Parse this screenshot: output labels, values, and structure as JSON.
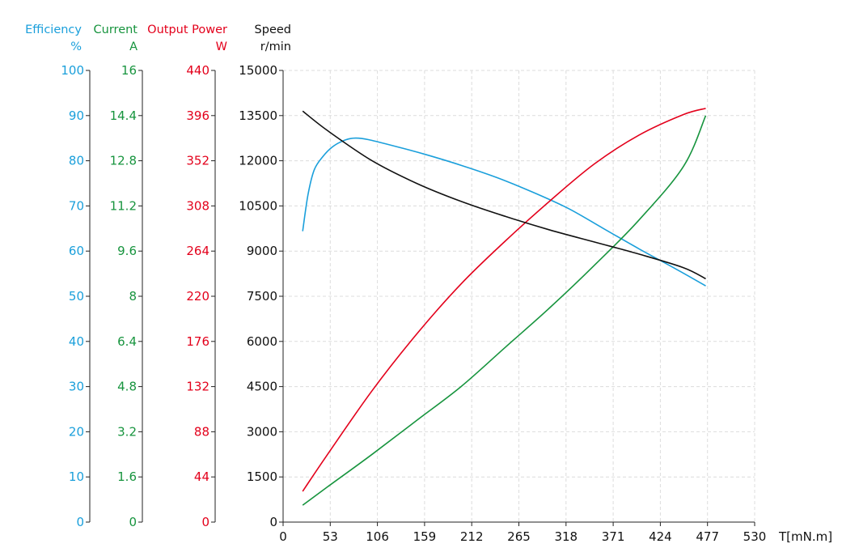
{
  "colors": {
    "efficiency": "#1a9fdb",
    "current": "#17943e",
    "power": "#e3001b",
    "speed": "#111111",
    "grid": "#dcdcdc"
  },
  "chart_data": {
    "type": "line",
    "grid": true,
    "x": {
      "label": "T[mN.m]",
      "range": [
        0,
        530
      ],
      "ticks": [
        "0",
        "53",
        "106",
        "159",
        "212",
        "265",
        "318",
        "371",
        "424",
        "477",
        "530"
      ]
    },
    "axes": [
      {
        "key": "efficiency",
        "title": "Efficiency",
        "unit": "%",
        "range": [
          0,
          100
        ],
        "ticks": [
          "0",
          "10",
          "20",
          "30",
          "40",
          "50",
          "60",
          "70",
          "80",
          "90",
          "100"
        ]
      },
      {
        "key": "current",
        "title": "Current",
        "unit": "A",
        "range": [
          0,
          16
        ],
        "ticks": [
          "0",
          "1.6",
          "3.2",
          "4.8",
          "6.4",
          "8",
          "9.6",
          "11.2",
          "12.8",
          "14.4",
          "16"
        ]
      },
      {
        "key": "power",
        "title": "Output Power",
        "unit": "W",
        "range": [
          0,
          440
        ],
        "ticks": [
          "0",
          "44",
          "88",
          "132",
          "176",
          "220",
          "264",
          "308",
          "352",
          "396",
          "440"
        ]
      },
      {
        "key": "speed",
        "title": "Speed",
        "unit": "r/min",
        "range": [
          0,
          15000
        ],
        "ticks": [
          "0",
          "1500",
          "3000",
          "4500",
          "6000",
          "7500",
          "9000",
          "10500",
          "12000",
          "13500",
          "15000"
        ]
      }
    ],
    "series": [
      {
        "axis": "efficiency",
        "x": [
          22,
          28,
          35,
          45,
          55,
          65,
          75,
          85,
          100,
          130,
          160,
          200,
          240,
          280,
          320,
          360,
          400,
          440,
          475
        ],
        "values": [
          64.4,
          72.5,
          78.0,
          81.0,
          83.0,
          84.2,
          84.9,
          85.0,
          84.5,
          83.0,
          81.4,
          79.0,
          76.3,
          73.1,
          69.5,
          65.0,
          60.5,
          56.2,
          52.3
        ]
      },
      {
        "axis": "current",
        "x": [
          22,
          50,
          100,
          150,
          200,
          250,
          300,
          350,
          400,
          450,
          475
        ],
        "values": [
          0.6,
          1.25,
          2.4,
          3.6,
          4.8,
          6.2,
          7.6,
          9.1,
          10.7,
          12.6,
          14.4
        ]
      },
      {
        "axis": "power",
        "x": [
          22,
          50,
          100,
          150,
          200,
          250,
          300,
          350,
          400,
          450,
          475
        ],
        "values": [
          30,
          66,
          128,
          183,
          232,
          274,
          313,
          349,
          377,
          397,
          403
        ]
      },
      {
        "axis": "speed",
        "x": [
          22,
          50,
          100,
          150,
          200,
          250,
          300,
          350,
          400,
          450,
          475
        ],
        "values": [
          13650,
          13000,
          12000,
          11250,
          10650,
          10150,
          9700,
          9300,
          8900,
          8450,
          8080
        ]
      }
    ]
  }
}
